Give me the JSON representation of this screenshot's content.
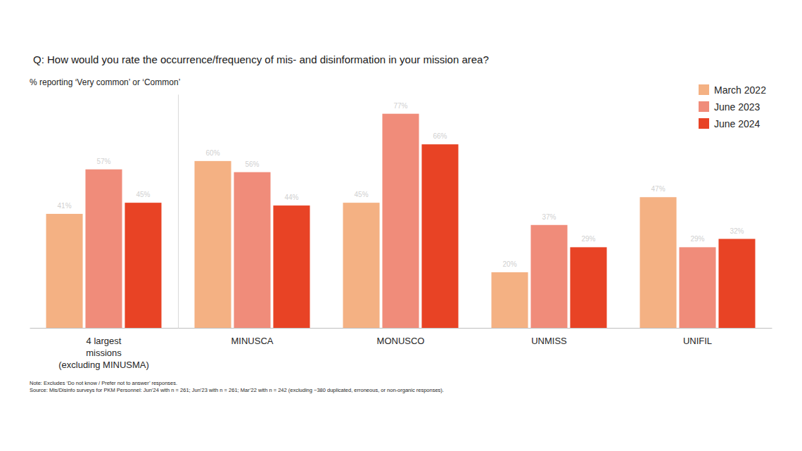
{
  "chart_data": {
    "type": "bar",
    "title": "Q: How would you rate the occurrence/frequency of mis- and disinformation in your mission area?",
    "subtitle": "% reporting ‘Very common’ or ‘Common’",
    "categories": [
      "4 largest\nmissions\n(excluding MINUSMA)",
      "MINUSCA",
      "MONUSCO",
      "UNMISS",
      "UNIFIL"
    ],
    "series": [
      {
        "name": "March 2022",
        "color": "#f4b183",
        "values": [
          41,
          60,
          45,
          20,
          47
        ],
        "value_labels": [
          "41%",
          "60%",
          "45%",
          "20%",
          "47%"
        ]
      },
      {
        "name": "June 2023",
        "color": "#f08c7a",
        "values": [
          57,
          56,
          77,
          37,
          29
        ],
        "value_labels": [
          "57%",
          "56%",
          "77%",
          "37%",
          "29%"
        ]
      },
      {
        "name": "June 2024",
        "color": "#e84325",
        "values": [
          45,
          44,
          66,
          29,
          32
        ],
        "value_labels": [
          "45%",
          "44%",
          "66%",
          "29%",
          "32%"
        ]
      }
    ],
    "ylim": [
      0,
      84
    ],
    "tick_labels": "x",
    "grid": false,
    "legend": "top-right",
    "data_labels": true,
    "notes": [
      "Note: Excludes ‘Do not know / Prefer not to answer’ responses.",
      "Source: Mis/Disinfo surveys for PKM Personnel: Jun’24 with n = 261; Jun’23 with n = 261; Mar’22 with n = 242 (excluding ~380 duplicated, erroneous, or non-organic responses)."
    ]
  }
}
